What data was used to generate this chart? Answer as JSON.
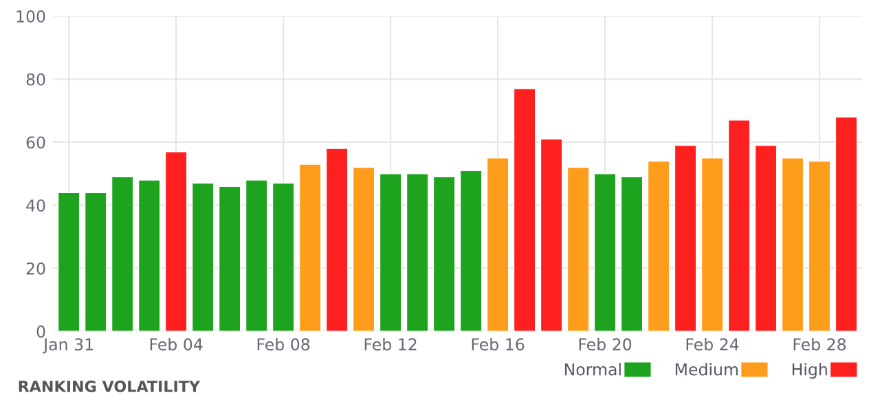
{
  "chart_data": {
    "type": "bar",
    "title": "RANKING VOLATILITY",
    "categories": [
      "Jan 31",
      null,
      null,
      null,
      "Feb 04",
      null,
      null,
      null,
      "Feb 08",
      null,
      null,
      null,
      "Feb 12",
      null,
      null,
      null,
      "Feb 16",
      null,
      null,
      null,
      "Feb 20",
      null,
      null,
      null,
      "Feb 24",
      null,
      null,
      null,
      "Feb 28",
      null
    ],
    "series": [
      {
        "name": "Normal",
        "color": "#1ea31e",
        "values": [
          44,
          44,
          49,
          48,
          null,
          47,
          46,
          48,
          47,
          null,
          null,
          null,
          50,
          50,
          49,
          51,
          null,
          null,
          null,
          null,
          50,
          49,
          null,
          null,
          null,
          null,
          null,
          null,
          null,
          null
        ]
      },
      {
        "name": "Medium",
        "color": "#fe9c1b",
        "values": [
          null,
          null,
          null,
          null,
          null,
          null,
          null,
          null,
          null,
          53,
          null,
          52,
          null,
          null,
          null,
          null,
          55,
          null,
          null,
          52,
          null,
          null,
          54,
          null,
          55,
          null,
          null,
          55,
          54,
          null
        ]
      },
      {
        "name": "High",
        "color": "#fe1f1f",
        "values": [
          null,
          null,
          null,
          null,
          57,
          null,
          null,
          null,
          null,
          null,
          58,
          null,
          null,
          null,
          null,
          null,
          null,
          77,
          61,
          null,
          null,
          null,
          null,
          59,
          null,
          67,
          59,
          null,
          null,
          68
        ]
      }
    ],
    "ylim": [
      0,
      100
    ],
    "yticks": [
      0,
      20,
      40,
      60,
      80,
      100
    ],
    "grid": true,
    "legend": "bottom right"
  }
}
